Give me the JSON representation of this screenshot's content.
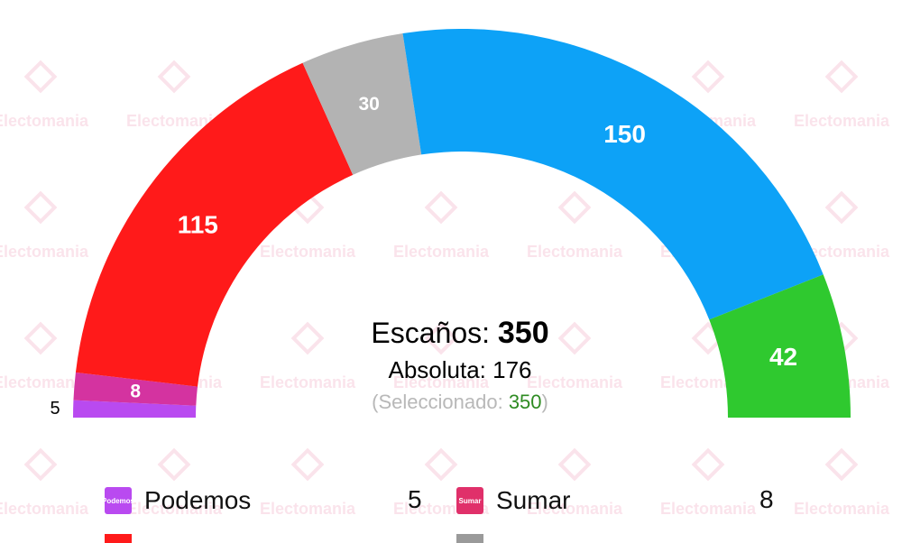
{
  "watermark": "Electomania",
  "center": {
    "seats_label": "Escaños:",
    "seats_total": "350",
    "absolute_label": "Absoluta:",
    "absolute_value": "176",
    "selected_open": "(Seleccionado:",
    "selected_value": "350",
    "selected_close": ")"
  },
  "legend": [
    {
      "name": "Podemos",
      "value": "5",
      "color": "#b94af0",
      "logo": "Podemos"
    },
    {
      "name": "Sumar",
      "value": "8",
      "color": "#e0306a",
      "logo": "Sumar"
    }
  ],
  "legend_partial_colors": [
    "#ff1a1a",
    "#9a9a9a"
  ],
  "chart_data": {
    "type": "pie",
    "layout": "hemicycle",
    "total": 350,
    "majority": 176,
    "series": [
      {
        "name": "Podemos",
        "value": 5,
        "color": "#b94af0",
        "label": "5"
      },
      {
        "name": "Sumar",
        "value": 8,
        "color": "#d433a0",
        "label": "8"
      },
      {
        "value": 115,
        "color": "#ff1a1a",
        "label": "115"
      },
      {
        "value": 30,
        "color": "#b3b3b3",
        "label": "30"
      },
      {
        "value": 150,
        "color": "#0da2f7",
        "label": "150"
      },
      {
        "value": 42,
        "color": "#2fc92f",
        "label": "42"
      }
    ]
  }
}
